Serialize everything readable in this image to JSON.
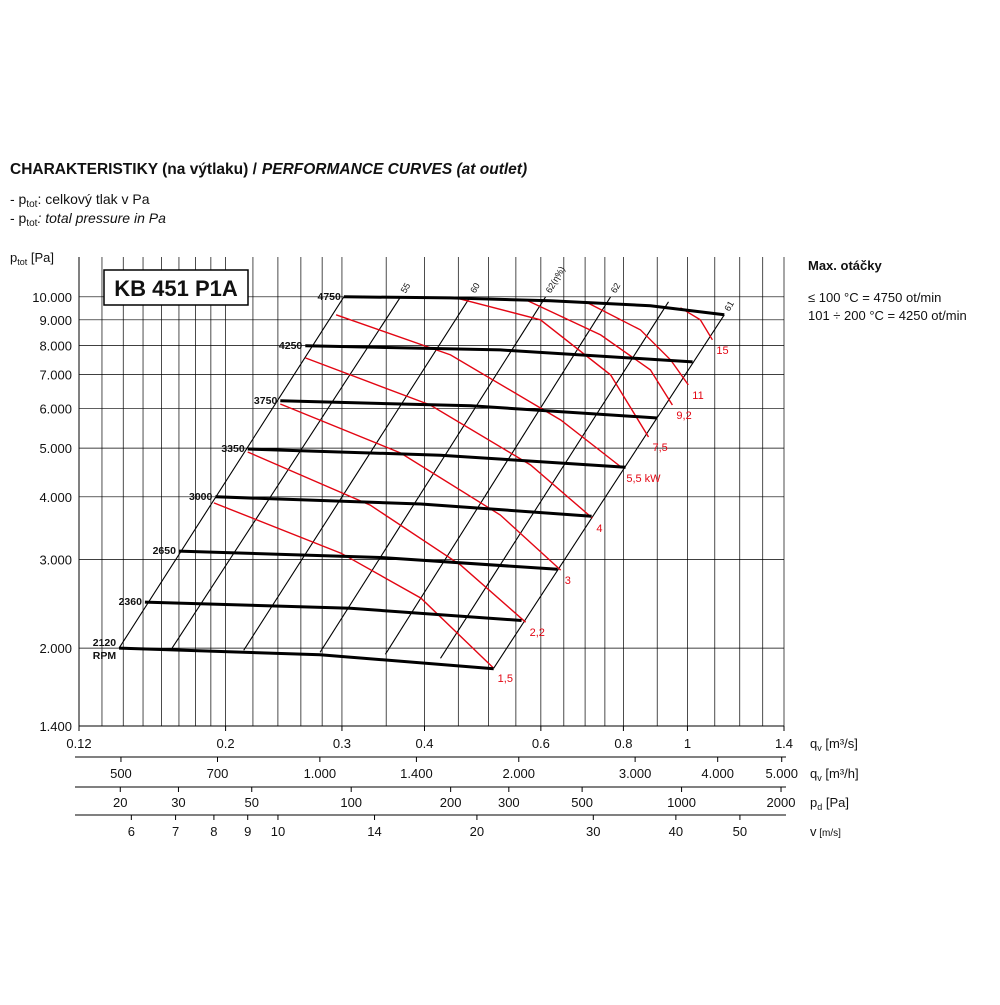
{
  "chart_data": {
    "type": "performance",
    "title_cz": "CHARAKTERISTIKY (na výtlaku) /",
    "title_en": "PERFORMANCE CURVES (at outlet)",
    "notes": [
      {
        "prefix": "- p",
        "sub": "tot",
        "text": ": celkový tlak v Pa"
      },
      {
        "prefix": "- p",
        "sub": "tot",
        "text": ": total pressure in Pa"
      }
    ],
    "model": "KB 451 P1A",
    "max_speed": {
      "title": "Max. otáčky",
      "lines": [
        "≤ 100 °C = 4750 ot/min",
        "101 ÷ 200 °C = 4250 ot/min"
      ]
    },
    "y_label": {
      "main": "p",
      "sub": "tot",
      "unit": " [Pa]"
    },
    "x_label": {
      "main": "q",
      "sub": "v",
      "unit": " [m³/s]"
    },
    "log_x": true,
    "log_y": true,
    "xlim": [
      0.12,
      1.4
    ],
    "xticks": [
      0.12,
      0.2,
      0.3,
      0.4,
      0.6,
      0.8,
      1,
      1.4
    ],
    "xgrid": [
      0.13,
      0.14,
      0.15,
      0.16,
      0.17,
      0.18,
      0.19,
      0.2,
      0.22,
      0.24,
      0.26,
      0.28,
      0.3,
      0.35,
      0.4,
      0.45,
      0.5,
      0.55,
      0.6,
      0.65,
      0.7,
      0.75,
      0.8,
      0.9,
      1,
      1.1,
      1.2,
      1.3,
      1.4
    ],
    "ylim": [
      1400,
      12000
    ],
    "yticks": [
      {
        "value": 1400,
        "label": "1.400"
      },
      {
        "value": 2000,
        "label": "2.000"
      },
      {
        "value": 3000,
        "label": "3.000"
      },
      {
        "value": 4000,
        "label": "4.000"
      },
      {
        "value": 5000,
        "label": "5.000"
      },
      {
        "value": 6000,
        "label": "6.000"
      },
      {
        "value": 7000,
        "label": "7.000"
      },
      {
        "value": 8000,
        "label": "8.000"
      },
      {
        "value": 9000,
        "label": "9.000"
      },
      {
        "value": 10000,
        "label": "10.000"
      }
    ],
    "secondary_x_axes": [
      {
        "label": {
          "main": "q",
          "sub": "v",
          "unit": " [m³/h]"
        },
        "xlim": [
          432,
          5040
        ],
        "xticks": [
          500,
          700,
          {
            "value": 1000,
            "label": "1.000"
          },
          {
            "value": 1400,
            "label": "1.400"
          },
          {
            "value": 2000,
            "label": "2.000"
          },
          {
            "value": 3000,
            "label": "3.000"
          },
          {
            "value": 4000,
            "label": "4.000"
          },
          {
            "value": 5000,
            "label": "5.000"
          }
        ]
      },
      {
        "label": {
          "main": "p",
          "sub": "d",
          "unit": " [Pa]"
        },
        "xlim": [
          15,
          2042
        ],
        "xticks": [
          20,
          30,
          50,
          100,
          200,
          300,
          500,
          1000,
          2000
        ]
      },
      {
        "label": {
          "main": "v",
          "unit": " [m/s]"
        },
        "xlim": [
          5,
          58.3
        ],
        "xticks": [
          6,
          7,
          8,
          9,
          10,
          14,
          20,
          30,
          40,
          50
        ]
      }
    ],
    "rpm_unit": "RPM",
    "rpm_color": "#000000",
    "rpm_curves": [
      {
        "name": "4750",
        "x": [
          0.302,
          0.438,
          0.62,
          0.879,
          1.137
        ],
        "values": [
          10000,
          9950,
          9820,
          9600,
          9210
        ]
      },
      {
        "name": "4250",
        "x": [
          0.264,
          0.521,
          1.018
        ],
        "values": [
          7990,
          7840,
          7420
        ]
      },
      {
        "name": "3750",
        "x": [
          0.242,
          0.47,
          0.901
        ],
        "values": [
          6210,
          6070,
          5740
        ]
      },
      {
        "name": "3350",
        "x": [
          0.216,
          0.423,
          0.806
        ],
        "values": [
          4980,
          4840,
          4580
        ]
      },
      {
        "name": "3000",
        "x": [
          0.193,
          0.395,
          0.716
        ],
        "values": [
          4000,
          3870,
          3660
        ]
      },
      {
        "name": "2650",
        "x": [
          0.17,
          0.343,
          0.636
        ],
        "values": [
          3120,
          3030,
          2870
        ]
      },
      {
        "name": "2360",
        "x": [
          0.151,
          0.309,
          0.561
        ],
        "values": [
          2470,
          2400,
          2270
        ]
      },
      {
        "name": "2120",
        "x": [
          0.138,
          0.278,
          0.509
        ],
        "values": [
          2000,
          1940,
          1820
        ]
      }
    ],
    "power_color": "#e30613",
    "power_curves": [
      {
        "name": "1,5",
        "x": [
          0.192,
          0.299,
          0.395,
          0.509
        ],
        "values": [
          3890,
          3090,
          2515,
          1824
        ]
      },
      {
        "name": "2,2",
        "x": [
          0.216,
          0.331,
          0.454,
          0.569
        ],
        "values": [
          4912,
          3852,
          2924,
          2252
        ]
      },
      {
        "name": "3",
        "x": [
          0.242,
          0.368,
          0.521,
          0.643
        ],
        "values": [
          6120,
          4890,
          3680,
          2859
        ]
      },
      {
        "name": "4",
        "x": [
          0.264,
          0.408,
          0.579,
          0.718
        ],
        "values": [
          7560,
          6092,
          4627,
          3629
        ]
      },
      {
        "name": "5,5 kW",
        "x": [
          0.294,
          0.438,
          0.643,
          0.797
        ],
        "values": [
          9210,
          7664,
          5688,
          4564
        ]
      },
      {
        "name": "7,5",
        "x": [
          0.446,
          0.599,
          0.765,
          0.873
        ],
        "values": [
          9954,
          9000,
          6993,
          5262
        ]
      },
      {
        "name": "9,2",
        "x": [
          0.569,
          0.739,
          0.879,
          0.949
        ],
        "values": [
          9863,
          8400,
          7155,
          6092
        ]
      },
      {
        "name": "11",
        "x": [
          0.701,
          0.849,
          0.943,
          1.003
        ],
        "values": [
          9773,
          8595,
          7490,
          6678
        ]
      },
      {
        "name": "15",
        "x": [
          0.976,
          1.046,
          1.091
        ],
        "values": [
          9508,
          9000,
          8211
        ]
      }
    ],
    "efficiency_lines": [
      {
        "name": null,
        "x": [
          0.138,
          0.302
        ],
        "values": [
          2000,
          10000
        ]
      },
      {
        "name": "55",
        "x": [
          0.166,
          0.368
        ],
        "values": [
          2000,
          10000
        ]
      },
      {
        "name": "60",
        "x": [
          0.213,
          0.469
        ],
        "values": [
          1980,
          10000
        ]
      },
      {
        "name": "62(η%)",
        "x": [
          0.278,
          0.61
        ],
        "values": [
          1962,
          10000
        ]
      },
      {
        "name": "62",
        "x": [
          0.349,
          0.765
        ],
        "values": [
          1944,
          10000
        ]
      },
      {
        "name": null,
        "x": [
          0.423,
          0.936
        ],
        "values": [
          1909,
          9773
        ]
      },
      {
        "name": "61",
        "x": [
          0.509,
          1.137
        ],
        "values": [
          1824,
          9207
        ]
      }
    ]
  }
}
